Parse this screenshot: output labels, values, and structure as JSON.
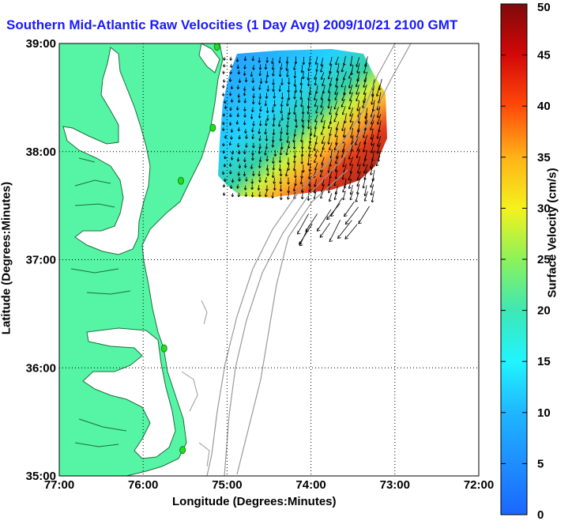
{
  "title": "Southern Mid-Atlantic Raw Velocities (1 Day Avg) 2009/10/21 2100 GMT",
  "xlabel": "Longitude (Degrees:Minutes)",
  "ylabel": "Latitude (Degrees:Minutes)",
  "x_ticks": [
    "77:00",
    "76:00",
    "75:00",
    "74:00",
    "73:00",
    "72:00"
  ],
  "y_ticks": [
    "39:00",
    "38:00",
    "37:00",
    "36:00",
    "35:00"
  ],
  "colorbar": {
    "label": "Surface Velocity (cm/s)",
    "ticks": [
      "50",
      "45",
      "40",
      "35",
      "30",
      "25",
      "20",
      "15",
      "10",
      "5",
      "0"
    ],
    "min": 0,
    "max": 50
  },
  "colors": {
    "land": "#55f5a5",
    "coast_outline": "#1e6e3c",
    "bathymetry": "#999999",
    "station": "#22dd22",
    "title": "#1a1aff"
  },
  "map_data": {
    "lon_range": [
      -77,
      -72
    ],
    "lat_range": [
      35,
      39
    ],
    "stations": [
      {
        "lon": -75.12,
        "lat": 38.97
      },
      {
        "lon": -75.17,
        "lat": 38.22
      },
      {
        "lon": -75.55,
        "lat": 37.73
      },
      {
        "lon": -75.75,
        "lat": 36.18
      },
      {
        "lon": -75.53,
        "lat": 35.24
      }
    ]
  }
}
